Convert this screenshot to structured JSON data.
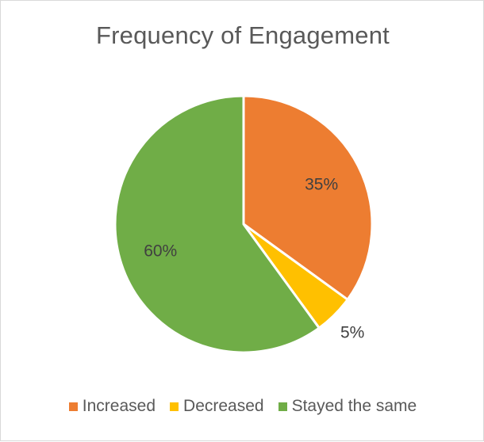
{
  "chart_data": {
    "type": "pie",
    "title": "Frequency of Engagement",
    "categories": [
      "Increased",
      "Decreased",
      "Stayed the same"
    ],
    "values": [
      35,
      5,
      60
    ],
    "labels": [
      "35%",
      "5%",
      "60%"
    ],
    "colors": [
      "#ED7D31",
      "#FFC000",
      "#70AD47"
    ],
    "legend_position": "bottom"
  }
}
